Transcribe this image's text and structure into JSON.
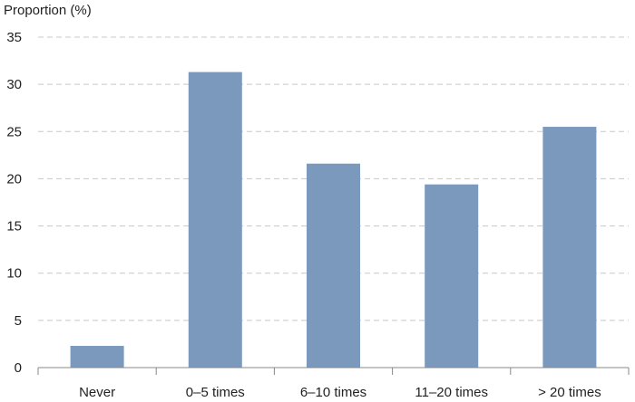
{
  "chart_data": {
    "type": "bar",
    "title": "",
    "xlabel": "",
    "ylabel": "Proportion (%)",
    "categories": [
      "Never",
      "0–5 times",
      "6–10 times",
      "11–20 times",
      "> 20 times"
    ],
    "values": [
      2.3,
      31.3,
      21.6,
      19.4,
      25.5
    ],
    "ylim": [
      0,
      35
    ],
    "yticks": [
      0,
      5,
      10,
      15,
      20,
      25,
      30,
      35
    ],
    "grid": true,
    "bar_color": "#7b98bd"
  }
}
